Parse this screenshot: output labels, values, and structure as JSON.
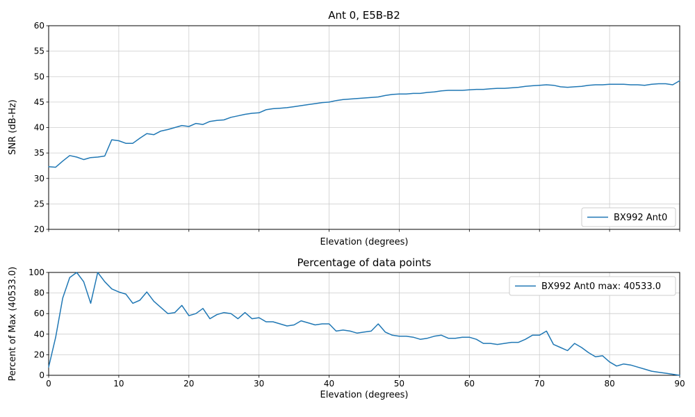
{
  "figure": {
    "background": "#ffffff",
    "line_color": "#1f77b4",
    "grid_color": "#cccccc"
  },
  "chart_data": [
    {
      "type": "line",
      "title": "Ant 0, E5B-B2",
      "xlabel": "Elevation (degrees)",
      "ylabel": "SNR (dB-Hz)",
      "xlim": [
        0,
        90
      ],
      "ylim": [
        20,
        60
      ],
      "xticks": [
        0,
        10,
        20,
        30,
        40,
        50,
        60,
        70,
        80,
        90
      ],
      "yticks": [
        20,
        25,
        30,
        35,
        40,
        45,
        50,
        55,
        60
      ],
      "show_xtick_labels": false,
      "grid": true,
      "legend": {
        "label": "BX992 Ant0",
        "position": "lower right"
      },
      "x": [
        0,
        1,
        2,
        3,
        4,
        5,
        6,
        7,
        8,
        9,
        10,
        11,
        12,
        13,
        14,
        15,
        16,
        17,
        18,
        19,
        20,
        21,
        22,
        23,
        24,
        25,
        26,
        27,
        28,
        29,
        30,
        31,
        32,
        33,
        34,
        35,
        36,
        37,
        38,
        39,
        40,
        41,
        42,
        43,
        44,
        45,
        46,
        47,
        48,
        49,
        50,
        51,
        52,
        53,
        54,
        55,
        56,
        57,
        58,
        59,
        60,
        61,
        62,
        63,
        64,
        65,
        66,
        67,
        68,
        69,
        70,
        71,
        72,
        73,
        74,
        75,
        76,
        77,
        78,
        79,
        80,
        81,
        82,
        83,
        84,
        85,
        86,
        87,
        88,
        89,
        90
      ],
      "y": [
        32.3,
        32.2,
        33.4,
        34.5,
        34.2,
        33.7,
        34.1,
        34.2,
        34.4,
        37.6,
        37.4,
        36.9,
        36.9,
        37.9,
        38.8,
        38.6,
        39.3,
        39.6,
        40.0,
        40.4,
        40.2,
        40.8,
        40.6,
        41.2,
        41.4,
        41.5,
        42.0,
        42.3,
        42.6,
        42.8,
        42.9,
        43.5,
        43.7,
        43.8,
        43.9,
        44.1,
        44.3,
        44.5,
        44.7,
        44.9,
        45.0,
        45.3,
        45.5,
        45.6,
        45.7,
        45.8,
        45.9,
        46.0,
        46.3,
        46.5,
        46.6,
        46.6,
        46.7,
        46.7,
        46.9,
        47.0,
        47.2,
        47.3,
        47.3,
        47.3,
        47.4,
        47.5,
        47.5,
        47.6,
        47.7,
        47.7,
        47.8,
        47.9,
        48.1,
        48.2,
        48.3,
        48.4,
        48.3,
        48.0,
        47.9,
        48.0,
        48.1,
        48.3,
        48.4,
        48.4,
        48.5,
        48.5,
        48.5,
        48.4,
        48.4,
        48.3,
        48.5,
        48.6,
        48.6,
        48.4,
        49.2
      ]
    },
    {
      "type": "line",
      "title": "Percentage of data points",
      "xlabel": "Elevation (degrees)",
      "ylabel": "Percent of Max (40533.0)",
      "max": 40533.0,
      "xlim": [
        0,
        90
      ],
      "ylim": [
        0,
        100
      ],
      "xticks": [
        0,
        10,
        20,
        30,
        40,
        50,
        60,
        70,
        80,
        90
      ],
      "yticks": [
        0,
        20,
        40,
        60,
        80,
        100
      ],
      "show_xtick_labels": true,
      "grid": true,
      "legend": {
        "label": "BX992 Ant0 max: 40533.0",
        "position": "upper right"
      },
      "x": [
        0,
        1,
        2,
        3,
        4,
        5,
        6,
        7,
        8,
        9,
        10,
        11,
        12,
        13,
        14,
        15,
        16,
        17,
        18,
        19,
        20,
        21,
        22,
        23,
        24,
        25,
        26,
        27,
        28,
        29,
        30,
        31,
        32,
        33,
        34,
        35,
        36,
        37,
        38,
        39,
        40,
        41,
        42,
        43,
        44,
        45,
        46,
        47,
        48,
        49,
        50,
        51,
        52,
        53,
        54,
        55,
        56,
        57,
        58,
        59,
        60,
        61,
        62,
        63,
        64,
        65,
        66,
        67,
        68,
        69,
        70,
        71,
        72,
        73,
        74,
        75,
        76,
        77,
        78,
        79,
        80,
        81,
        82,
        83,
        84,
        85,
        86,
        87,
        88,
        89,
        90
      ],
      "y": [
        8,
        37,
        75,
        95,
        100,
        91,
        70,
        100,
        91,
        84,
        81,
        79,
        70,
        73,
        81,
        72,
        66,
        60,
        61,
        68,
        58,
        60,
        65,
        55,
        59,
        61,
        60,
        55,
        61,
        55,
        56,
        52,
        52,
        50,
        48,
        49,
        53,
        51,
        49,
        50,
        50,
        43,
        44,
        43,
        41,
        42,
        43,
        50,
        42,
        39,
        38,
        38,
        37,
        35,
        36,
        38,
        39,
        36,
        36,
        37,
        37,
        35,
        31,
        31,
        30,
        31,
        32,
        32,
        35,
        39,
        39,
        43,
        30,
        27,
        24,
        31,
        27,
        22,
        18,
        19,
        13,
        9,
        11,
        10,
        8,
        6,
        4,
        3,
        2,
        1,
        0
      ]
    }
  ]
}
